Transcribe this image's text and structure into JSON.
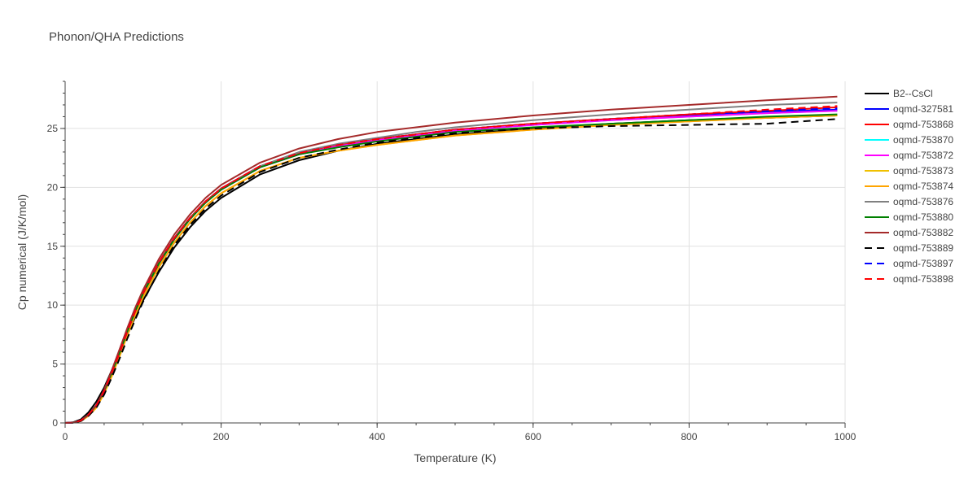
{
  "chart_data": {
    "type": "line",
    "title": "Phonon/QHA Predictions",
    "xlabel": "Temperature (K)",
    "ylabel": "Cp numerical (J/K/mol)",
    "xlim": [
      0,
      1000
    ],
    "ylim": [
      0,
      29
    ],
    "xticks": [
      0,
      200,
      400,
      600,
      800,
      1000
    ],
    "yticks": [
      0,
      5,
      10,
      15,
      20,
      25
    ],
    "grid": true,
    "legend_position": "right",
    "x": [
      0,
      10,
      20,
      30,
      40,
      50,
      60,
      70,
      80,
      90,
      100,
      120,
      140,
      160,
      180,
      200,
      250,
      300,
      350,
      400,
      450,
      500,
      600,
      700,
      800,
      900,
      990
    ],
    "series": [
      {
        "name": "B2--CsCl",
        "color": "#000000",
        "dash": "solid",
        "values": [
          0,
          0.05,
          0.3,
          0.9,
          1.8,
          3.0,
          4.5,
          6.0,
          7.5,
          9.0,
          10.4,
          12.8,
          14.9,
          16.6,
          18.0,
          19.1,
          21.1,
          22.3,
          23.1,
          23.7,
          24.1,
          24.5,
          25.0,
          25.4,
          25.7,
          25.9,
          26.1
        ]
      },
      {
        "name": "oqmd-327581",
        "color": "#0000ff",
        "dash": "solid",
        "values": [
          0,
          0.02,
          0.2,
          0.7,
          1.5,
          2.7,
          4.3,
          6.0,
          7.8,
          9.5,
          11.0,
          13.6,
          15.7,
          17.4,
          18.8,
          19.9,
          21.8,
          22.9,
          23.6,
          24.1,
          24.5,
          24.9,
          25.4,
          25.8,
          26.1,
          26.4,
          26.6
        ]
      },
      {
        "name": "oqmd-753868",
        "color": "#ff0000",
        "dash": "solid",
        "values": [
          0,
          0.02,
          0.2,
          0.7,
          1.5,
          2.7,
          4.3,
          6.0,
          7.8,
          9.5,
          11.0,
          13.6,
          15.7,
          17.4,
          18.8,
          19.9,
          21.8,
          22.9,
          23.6,
          24.1,
          24.5,
          24.9,
          25.4,
          25.8,
          26.2,
          26.5,
          26.8
        ]
      },
      {
        "name": "oqmd-753870",
        "color": "#00ffff",
        "dash": "solid",
        "values": [
          0,
          0.02,
          0.2,
          0.7,
          1.5,
          2.7,
          4.3,
          6.0,
          7.8,
          9.5,
          11.0,
          13.5,
          15.6,
          17.3,
          18.7,
          19.8,
          21.7,
          22.8,
          23.5,
          24.0,
          24.4,
          24.8,
          25.3,
          25.7,
          26.0,
          26.3,
          26.5
        ]
      },
      {
        "name": "oqmd-753872",
        "color": "#ff00ff",
        "dash": "solid",
        "values": [
          0,
          0.02,
          0.2,
          0.7,
          1.5,
          2.7,
          4.3,
          6.0,
          7.8,
          9.5,
          11.0,
          13.5,
          15.6,
          17.3,
          18.7,
          19.8,
          21.7,
          22.8,
          23.5,
          24.0,
          24.4,
          24.8,
          25.3,
          25.7,
          26.0,
          26.3,
          26.5
        ]
      },
      {
        "name": "oqmd-753873",
        "color": "#f0c000",
        "dash": "solid",
        "values": [
          0,
          0.02,
          0.15,
          0.6,
          1.3,
          2.5,
          4.0,
          5.7,
          7.5,
          9.2,
          10.7,
          13.2,
          15.3,
          17.0,
          18.4,
          19.5,
          21.4,
          22.5,
          23.1,
          23.6,
          24.0,
          24.4,
          24.9,
          25.3,
          25.6,
          25.9,
          26.1
        ]
      },
      {
        "name": "oqmd-753874",
        "color": "#ffa500",
        "dash": "solid",
        "values": [
          0,
          0.02,
          0.15,
          0.6,
          1.3,
          2.5,
          4.0,
          5.7,
          7.5,
          9.2,
          10.7,
          13.2,
          15.3,
          17.0,
          18.4,
          19.5,
          21.4,
          22.5,
          23.1,
          23.6,
          24.0,
          24.4,
          24.9,
          25.3,
          25.6,
          25.9,
          26.1
        ]
      },
      {
        "name": "oqmd-753876",
        "color": "#808080",
        "dash": "solid",
        "values": [
          0,
          0.02,
          0.2,
          0.7,
          1.5,
          2.7,
          4.3,
          6.0,
          7.8,
          9.5,
          11.0,
          13.5,
          15.6,
          17.3,
          18.7,
          19.8,
          21.8,
          23.0,
          23.7,
          24.2,
          24.7,
          25.1,
          25.7,
          26.2,
          26.6,
          27.0,
          27.2
        ]
      },
      {
        "name": "oqmd-753880",
        "color": "#008000",
        "dash": "solid",
        "values": [
          0,
          0.02,
          0.2,
          0.7,
          1.5,
          2.7,
          4.3,
          6.0,
          7.8,
          9.5,
          11.0,
          13.5,
          15.6,
          17.3,
          18.7,
          19.8,
          21.7,
          22.8,
          23.4,
          23.9,
          24.3,
          24.7,
          25.1,
          25.4,
          25.7,
          26.0,
          26.2
        ]
      },
      {
        "name": "oqmd-753882",
        "color": "#a52a2a",
        "dash": "solid",
        "values": [
          0,
          0.02,
          0.2,
          0.7,
          1.5,
          2.8,
          4.5,
          6.3,
          8.1,
          9.8,
          11.3,
          13.9,
          16.0,
          17.7,
          19.1,
          20.2,
          22.1,
          23.3,
          24.1,
          24.7,
          25.1,
          25.5,
          26.1,
          26.6,
          27.0,
          27.4,
          27.7
        ]
      },
      {
        "name": "oqmd-753889",
        "color": "#000000",
        "dash": "dash",
        "values": [
          0,
          0.02,
          0.15,
          0.6,
          1.3,
          2.4,
          3.9,
          5.5,
          7.2,
          8.8,
          10.3,
          12.9,
          15.1,
          16.8,
          18.2,
          19.3,
          21.3,
          22.5,
          23.2,
          23.8,
          24.2,
          24.6,
          25.0,
          25.2,
          25.3,
          25.4,
          25.8
        ]
      },
      {
        "name": "oqmd-753897",
        "color": "#0000ff",
        "dash": "dash",
        "values": [
          0,
          0.02,
          0.2,
          0.7,
          1.5,
          2.7,
          4.3,
          6.0,
          7.8,
          9.5,
          11.0,
          13.6,
          15.7,
          17.4,
          18.8,
          19.9,
          21.8,
          22.9,
          23.6,
          24.1,
          24.5,
          24.9,
          25.4,
          25.8,
          26.2,
          26.5,
          26.7
        ]
      },
      {
        "name": "oqmd-753898",
        "color": "#ff0000",
        "dash": "dash",
        "values": [
          0,
          0.02,
          0.2,
          0.7,
          1.5,
          2.7,
          4.3,
          6.0,
          7.8,
          9.5,
          11.0,
          13.6,
          15.7,
          17.4,
          18.8,
          19.9,
          21.8,
          22.9,
          23.6,
          24.1,
          24.5,
          24.9,
          25.4,
          25.8,
          26.2,
          26.6,
          26.9
        ]
      }
    ]
  }
}
